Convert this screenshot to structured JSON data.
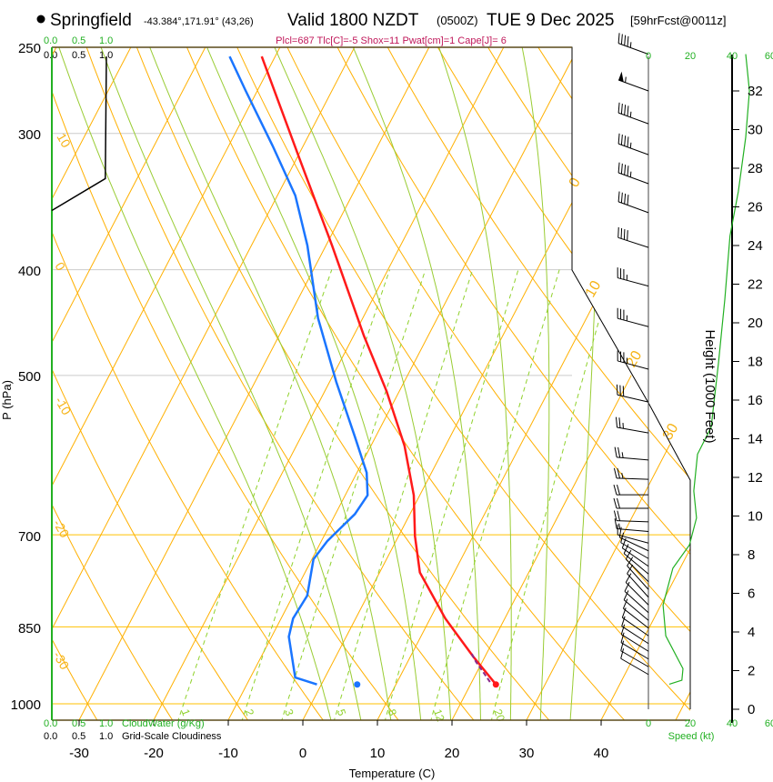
{
  "header": {
    "station": "Springfield",
    "coords": "-43.384°,171.91° (43,26)",
    "valid": "Valid 1800 NZDT",
    "utc": "(0500Z)",
    "date": "TUE 9 Dec 2025",
    "forecast": "[59hrFcst@0011z]",
    "stats": "Plcl=687 Tlc[C]=-5 Shox=11 Pwat[cm]=1 Cape[J]= 6"
  },
  "colors": {
    "temperature": "#ff1a1a",
    "dewpoint": "#1a75ff",
    "isotherm": "#ffb000",
    "mixing_ratio": "#8fd12a",
    "moist_adiabat": "#99cc33",
    "speed": "#22b022",
    "stats": "#c0185a"
  },
  "chart_data": {
    "type": "line",
    "title": "Skew-T log-P sounding",
    "xlabel": "Temperature (C)",
    "ylabel": "P (hPa)",
    "ylabel_right": "Height (1000 Feet)",
    "pressure_ticks": [
      "250",
      "300",
      "400",
      "500",
      "700",
      "850",
      "1000"
    ],
    "pressure_values": [
      250,
      300,
      400,
      500,
      700,
      850,
      1000
    ],
    "temp_ticks": [
      "-30",
      "-20",
      "-10",
      "0",
      "10",
      "20",
      "30",
      "40"
    ],
    "temp_values": [
      -30,
      -20,
      -10,
      0,
      10,
      20,
      30,
      40
    ],
    "height_ticks": [
      "0",
      "2",
      "4",
      "6",
      "8",
      "10",
      "12",
      "14",
      "16",
      "18",
      "20",
      "22",
      "24",
      "26",
      "28",
      "30",
      "32"
    ],
    "speed_axis": {
      "label": "Speed (kt)",
      "ticks": [
        "0",
        "20",
        "40",
        "60"
      ]
    },
    "cloud_water_axis": {
      "label": "CloudWater (g/Kg)",
      "ticks": [
        "0.0",
        "0.5",
        "1.0"
      ]
    },
    "cloudiness_axis": {
      "label": "Grid-Scale Cloudiness",
      "ticks": [
        "0.0",
        "0.5",
        "1.0"
      ]
    },
    "isotherm_labels_left": [
      "10",
      "0",
      "-10",
      "-20",
      "-30"
    ],
    "isotherm_labels_right": [
      "0",
      "10",
      "20",
      "30"
    ],
    "mixing_ratio_labels": [
      "1",
      "2",
      "3",
      "5",
      "8",
      "12",
      "20"
    ],
    "mixing_ratio_values": [
      1,
      2,
      3,
      5,
      8,
      12,
      20
    ],
    "temperature": [
      [
        960,
        23.4
      ],
      [
        905,
        18.4
      ],
      [
        835,
        12.0
      ],
      [
        758,
        5.4
      ],
      [
        702,
        2.2
      ],
      [
        644,
        -0.8
      ],
      [
        580,
        -5.5
      ],
      [
        517,
        -11.7
      ],
      [
        460,
        -18.6
      ],
      [
        380,
        -29.2
      ],
      [
        317,
        -39.5
      ],
      [
        255,
        -51.8
      ]
    ],
    "dewpoint": [
      [
        960,
        -0.6
      ],
      [
        946,
        -4.0
      ],
      [
        868,
        -7.7
      ],
      [
        835,
        -8.4
      ],
      [
        796,
        -8.1
      ],
      [
        737,
        -9.8
      ],
      [
        709,
        -9.2
      ],
      [
        670,
        -7.4
      ],
      [
        644,
        -7.0
      ],
      [
        614,
        -8.7
      ],
      [
        569,
        -12.8
      ],
      [
        507,
        -19.1
      ],
      [
        443,
        -26.0
      ],
      [
        380,
        -32.5
      ],
      [
        342,
        -37.6
      ],
      [
        308,
        -44.1
      ],
      [
        274,
        -51.6
      ],
      [
        255,
        -56.1
      ]
    ],
    "parcel": [
      [
        955,
        22.8
      ],
      [
        940,
        21.6
      ],
      [
        915,
        19.5
      ],
      [
        900,
        18.4
      ]
    ],
    "surface_dewpoint_marker": [
      960,
      4.8
    ],
    "cloudiness": [
      [
        255,
        1.0
      ],
      [
        330,
        0.98
      ],
      [
        353,
        0.0
      ]
    ],
    "wind_speed_profile": [
      [
        33.9,
        46.5
      ],
      [
        32.0,
        48.3
      ],
      [
        29.6,
        46.5
      ],
      [
        26.8,
        43
      ],
      [
        24.5,
        39
      ],
      [
        21.2,
        36.5
      ],
      [
        17.9,
        33.5
      ],
      [
        14.6,
        30
      ],
      [
        13.2,
        23.5
      ],
      [
        11.3,
        21.7
      ],
      [
        9.9,
        23
      ],
      [
        8.5,
        19.6
      ],
      [
        7.3,
        11.7
      ],
      [
        5.4,
        7
      ],
      [
        3.8,
        8.3
      ],
      [
        2.1,
        16.5
      ],
      [
        1.5,
        16
      ],
      [
        1.3,
        10
      ]
    ],
    "wind_barbs": [
      [
        33.9,
        290,
        45
      ],
      [
        32.0,
        290,
        55
      ],
      [
        30.3,
        290,
        45
      ],
      [
        28.7,
        290,
        45
      ],
      [
        27.2,
        290,
        45
      ],
      [
        25.7,
        290,
        40
      ],
      [
        23.9,
        288,
        40
      ],
      [
        21.9,
        285,
        35
      ],
      [
        19.8,
        285,
        35
      ],
      [
        17.6,
        285,
        35
      ],
      [
        15.9,
        283,
        30
      ],
      [
        14.3,
        280,
        25
      ],
      [
        12.9,
        275,
        25
      ],
      [
        11.9,
        272,
        25
      ],
      [
        11.1,
        270,
        20
      ],
      [
        10.4,
        270,
        20
      ],
      [
        9.7,
        272,
        20
      ],
      [
        9.2,
        275,
        15
      ],
      [
        8.6,
        285,
        10
      ],
      [
        8.2,
        295,
        10
      ],
      [
        7.8,
        300,
        10
      ],
      [
        7.4,
        305,
        10
      ],
      [
        7.0,
        310,
        10
      ],
      [
        6.6,
        315,
        10
      ],
      [
        6.2,
        318,
        10
      ],
      [
        5.8,
        318,
        10
      ],
      [
        5.4,
        315,
        10
      ],
      [
        5.0,
        312,
        10
      ],
      [
        4.6,
        310,
        10
      ],
      [
        4.2,
        308,
        10
      ],
      [
        3.8,
        305,
        10
      ],
      [
        3.4,
        303,
        10
      ],
      [
        3.0,
        302,
        10
      ],
      [
        2.6,
        301,
        10
      ],
      [
        2.2,
        300,
        10
      ],
      [
        1.8,
        300,
        10
      ]
    ]
  }
}
